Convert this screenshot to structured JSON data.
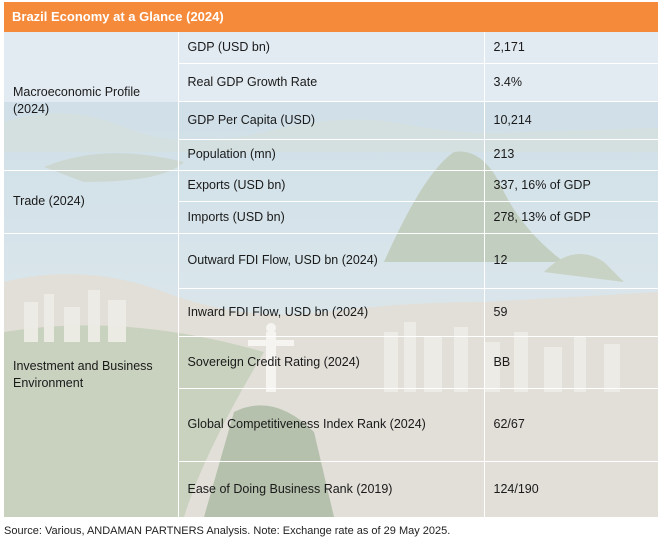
{
  "title": "Brazil Economy at a Glance (2024)",
  "groups": [
    {
      "label": "Macroeconomic Profile (2024)",
      "rows": [
        {
          "metric": "GDP (USD bn)",
          "value": "2,171"
        },
        {
          "metric": "Real GDP Growth Rate",
          "value": "3.4%"
        },
        {
          "metric": "GDP Per Capita (USD)",
          "value": "10,214"
        },
        {
          "metric": "Population (mn)",
          "value": "213"
        }
      ]
    },
    {
      "label": "Trade (2024)",
      "rows": [
        {
          "metric": "Exports (USD bn)",
          "value": "337, 16% of GDP"
        },
        {
          "metric": "Imports (USD bn)",
          "value": "278, 13% of GDP"
        }
      ]
    },
    {
      "label": "Investment and Business Environment",
      "rows": [
        {
          "metric": "Outward FDI Flow, USD bn (2024)",
          "value": "12"
        },
        {
          "metric": "Inward FDI Flow, USD bn (2024)",
          "value": "59"
        },
        {
          "metric": "Sovereign Credit Rating (2024)",
          "value": "BB"
        },
        {
          "metric": "Global Competitiveness Index Rank (2024)",
          "value": "62/67"
        },
        {
          "metric": "Ease of Doing Business Rank (2019)",
          "value": "124/190"
        }
      ]
    }
  ],
  "source": "Source: Various, ANDAMAN PARTNERS Analysis. Note: Exchange rate as of 29 May 2025.",
  "colors": {
    "header": "#f58a3a",
    "header_text": "#ffffff"
  }
}
